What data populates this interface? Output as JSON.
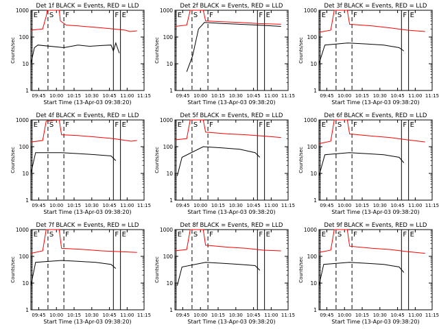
{
  "chart_data": [
    {
      "type": "line",
      "title": "Det 1f BLACK = Events, RED = LLD",
      "ylabel": "Counts/sec",
      "xlabel": "Start Time (13-Apr-03 09:38:20)",
      "x_ticks": [
        "09:45",
        "10:00",
        "10:15",
        "10:30",
        "10:45",
        "11:00",
        "11:15"
      ],
      "y_ticks": [
        "1",
        "10",
        "100",
        "1000"
      ],
      "y_scale": "log",
      "ylim": [
        1,
        1000
      ],
      "markers": [
        "E",
        "S",
        "F",
        "F",
        "E"
      ],
      "series": [
        {
          "color": "#ff0000",
          "values": [
            [
              0,
              180
            ],
            [
              5,
              190
            ],
            [
              10,
              200
            ],
            [
              13,
              600
            ],
            [
              14,
              1000
            ],
            [
              24,
              1000
            ],
            [
              25,
              400
            ],
            [
              30,
              280
            ],
            [
              40,
              260
            ],
            [
              50,
              240
            ],
            [
              60,
              220
            ],
            [
              70,
              200
            ],
            [
              80,
              180
            ],
            [
              84,
              160
            ],
            [
              90,
              170
            ]
          ]
        },
        {
          "color": "#000000",
          "values": [
            [
              0,
              10
            ],
            [
              3,
              40
            ],
            [
              6,
              50
            ],
            [
              28,
              40
            ],
            [
              40,
              50
            ],
            [
              50,
              45
            ],
            [
              60,
              48
            ],
            [
              68,
              50
            ],
            [
              70,
              30
            ],
            [
              72,
              60
            ],
            [
              75,
              25
            ]
          ]
        }
      ]
    },
    {
      "type": "line",
      "title": "Det 2f BLACK = Events, RED = LLD",
      "ylabel": "Counts/sec",
      "xlabel": "Start Time (13-Apr-03 09:38:20)",
      "x_ticks": [
        "09:45",
        "10:00",
        "10:15",
        "10:30",
        "10:45",
        "11:00",
        "11:15"
      ],
      "y_ticks": [
        "1",
        "10",
        "100",
        "1000"
      ],
      "y_scale": "log",
      "ylim": [
        1,
        1000
      ],
      "markers": [
        "E",
        "S",
        "F",
        "F",
        "E"
      ],
      "series": [
        {
          "color": "#ff0000",
          "values": [
            [
              0,
              250
            ],
            [
              10,
              280
            ],
            [
              13,
              1000
            ],
            [
              24,
              1000
            ],
            [
              26,
              400
            ],
            [
              35,
              380
            ],
            [
              55,
              350
            ],
            [
              70,
              320
            ],
            [
              90,
              300
            ]
          ]
        },
        {
          "color": "#000000",
          "values": [
            [
              10,
              5
            ],
            [
              15,
              20
            ],
            [
              20,
              200
            ],
            [
              25,
              350
            ],
            [
              40,
              320
            ],
            [
              55,
              300
            ],
            [
              70,
              280
            ],
            [
              90,
              250
            ]
          ]
        }
      ]
    },
    {
      "type": "line",
      "title": "Det 3f BLACK = Events, RED = LLD",
      "ylabel": "Counts/sec",
      "xlabel": "Start Time (13-Apr-03 09:38:20)",
      "x_ticks": [
        "09:45",
        "10:00",
        "10:15",
        "10:30",
        "10:45",
        "11:00",
        "11:15"
      ],
      "y_ticks": [
        "1",
        "10",
        "100",
        "1000"
      ],
      "y_scale": "log",
      "ylim": [
        1,
        1000
      ],
      "markers": [
        "E",
        "S",
        "F",
        "F",
        "E"
      ],
      "series": [
        {
          "color": "#ff0000",
          "values": [
            [
              0,
              150
            ],
            [
              10,
              180
            ],
            [
              13,
              1000
            ],
            [
              24,
              1000
            ],
            [
              26,
              300
            ],
            [
              45,
              260
            ],
            [
              60,
              220
            ],
            [
              75,
              180
            ],
            [
              90,
              160
            ]
          ]
        },
        {
          "color": "#000000",
          "values": [
            [
              0,
              10
            ],
            [
              5,
              50
            ],
            [
              24,
              60
            ],
            [
              40,
              55
            ],
            [
              55,
              50
            ],
            [
              68,
              40
            ],
            [
              72,
              30
            ]
          ]
        }
      ]
    },
    {
      "type": "line",
      "title": "Det 4f BLACK = Events, RED = LLD",
      "ylabel": "Counts/sec",
      "xlabel": "Start Time (13-Apr-03 09:38:20)",
      "x_ticks": [
        "09:45",
        "10:00",
        "10:15",
        "10:30",
        "10:45",
        "11:00",
        "11:15"
      ],
      "y_ticks": [
        "1",
        "10",
        "100",
        "1000"
      ],
      "y_scale": "log",
      "ylim": [
        1,
        1000
      ],
      "markers": [
        "E",
        "S",
        "F",
        "F",
        "E"
      ],
      "series": [
        {
          "color": "#ff0000",
          "values": [
            [
              0,
              150
            ],
            [
              10,
              170
            ],
            [
              13,
              900
            ],
            [
              24,
              1000
            ],
            [
              26,
              280
            ],
            [
              40,
              260
            ],
            [
              60,
              220
            ],
            [
              70,
              200
            ],
            [
              85,
              160
            ],
            [
              90,
              170
            ]
          ]
        },
        {
          "color": "#000000",
          "values": [
            [
              0,
              10
            ],
            [
              4,
              60
            ],
            [
              26,
              60
            ],
            [
              40,
              55
            ],
            [
              55,
              50
            ],
            [
              68,
              45
            ],
            [
              72,
              30
            ]
          ]
        }
      ]
    },
    {
      "type": "line",
      "title": "Det 5f BLACK = Events, RED = LLD",
      "ylabel": "Counts/sec",
      "xlabel": "Start Time (13-Apr-03 09:38:20)",
      "x_ticks": [
        "09:45",
        "10:00",
        "10:15",
        "10:30",
        "10:45",
        "11:00",
        "11:15"
      ],
      "y_ticks": [
        "1",
        "10",
        "100",
        "1000"
      ],
      "y_scale": "log",
      "ylim": [
        1,
        1000
      ],
      "markers": [
        "E",
        "S",
        "F",
        "F",
        "E"
      ],
      "series": [
        {
          "color": "#ff0000",
          "values": [
            [
              0,
              180
            ],
            [
              10,
              200
            ],
            [
              13,
              1000
            ],
            [
              24,
              1000
            ],
            [
              26,
              350
            ],
            [
              45,
              300
            ],
            [
              60,
              280
            ],
            [
              75,
              250
            ],
            [
              90,
              220
            ]
          ]
        },
        {
          "color": "#000000",
          "values": [
            [
              2,
              8
            ],
            [
              6,
              40
            ],
            [
              24,
              100
            ],
            [
              40,
              90
            ],
            [
              55,
              80
            ],
            [
              68,
              60
            ],
            [
              72,
              40
            ]
          ]
        }
      ]
    },
    {
      "type": "line",
      "title": "Det 6f BLACK = Events, RED = LLD",
      "ylabel": "Counts/sec",
      "xlabel": "Start Time (13-Apr-03 09:38:20)",
      "x_ticks": [
        "09:45",
        "10:00",
        "10:15",
        "10:30",
        "10:45",
        "11:00",
        "11:15"
      ],
      "y_ticks": [
        "1",
        "10",
        "100",
        "1000"
      ],
      "y_scale": "log",
      "ylim": [
        1,
        1000
      ],
      "markers": [
        "E",
        "S",
        "F",
        "F",
        "E"
      ],
      "series": [
        {
          "color": "#ff0000",
          "values": [
            [
              0,
              130
            ],
            [
              10,
              160
            ],
            [
              13,
              1000
            ],
            [
              24,
              1000
            ],
            [
              26,
              300
            ],
            [
              45,
              250
            ],
            [
              60,
              220
            ],
            [
              75,
              180
            ],
            [
              90,
              150
            ]
          ]
        },
        {
          "color": "#000000",
          "values": [
            [
              0,
              8
            ],
            [
              5,
              50
            ],
            [
              26,
              60
            ],
            [
              40,
              55
            ],
            [
              55,
              50
            ],
            [
              68,
              40
            ],
            [
              72,
              25
            ]
          ]
        }
      ]
    },
    {
      "type": "line",
      "title": "Det 7f BLACK = Events, RED = LLD",
      "ylabel": "Counts/sec",
      "xlabel": "Start Time (13-Apr-03 09:38:20)",
      "x_ticks": [
        "09:45",
        "10:00",
        "10:15",
        "10:30",
        "10:45",
        "11:00",
        "11:15"
      ],
      "y_ticks": [
        "1",
        "10",
        "100",
        "1000"
      ],
      "y_scale": "log",
      "ylim": [
        1,
        1000
      ],
      "markers": [
        "E",
        "S",
        "F",
        "F",
        "E"
      ],
      "series": [
        {
          "color": "#ff0000",
          "values": [
            [
              0,
              130
            ],
            [
              10,
              160
            ],
            [
              13,
              1000
            ],
            [
              24,
              1000
            ],
            [
              26,
              200
            ],
            [
              45,
              180
            ],
            [
              60,
              160
            ],
            [
              75,
              150
            ],
            [
              90,
              140
            ]
          ]
        },
        {
          "color": "#000000",
          "values": [
            [
              0,
              8
            ],
            [
              4,
              60
            ],
            [
              26,
              70
            ],
            [
              40,
              65
            ],
            [
              55,
              60
            ],
            [
              68,
              50
            ],
            [
              72,
              35
            ]
          ]
        }
      ]
    },
    {
      "type": "line",
      "title": "Det 8f BLACK = Events, RED = LLD",
      "ylabel": "Counts/sec",
      "xlabel": "Start Time (13-Apr-03 09:38:20)",
      "x_ticks": [
        "09:45",
        "10:00",
        "10:15",
        "10:30",
        "10:45",
        "11:00",
        "11:15"
      ],
      "y_ticks": [
        "1",
        "10",
        "100",
        "1000"
      ],
      "y_scale": "log",
      "ylim": [
        1,
        1000
      ],
      "markers": [
        "E",
        "S",
        "F",
        "F",
        "E"
      ],
      "series": [
        {
          "color": "#ff0000",
          "values": [
            [
              0,
              160
            ],
            [
              10,
              180
            ],
            [
              13,
              1000
            ],
            [
              24,
              1000
            ],
            [
              26,
              260
            ],
            [
              45,
              220
            ],
            [
              60,
              200
            ],
            [
              75,
              170
            ],
            [
              90,
              160
            ]
          ]
        },
        {
          "color": "#000000",
          "values": [
            [
              2,
              8
            ],
            [
              6,
              40
            ],
            [
              26,
              60
            ],
            [
              40,
              55
            ],
            [
              55,
              50
            ],
            [
              68,
              45
            ],
            [
              72,
              30
            ]
          ]
        }
      ]
    },
    {
      "type": "line",
      "title": "Det 9f BLACK = Events, RED = LLD",
      "ylabel": "Counts/sec",
      "xlabel": "Start Time (13-Apr-03 09:38:20)",
      "x_ticks": [
        "09:45",
        "10:00",
        "10:15",
        "10:30",
        "10:45",
        "11:00",
        "11:15"
      ],
      "y_ticks": [
        "1",
        "10",
        "100",
        "1000"
      ],
      "y_scale": "log",
      "ylim": [
        1,
        1000
      ],
      "markers": [
        "E",
        "S",
        "F",
        "F",
        "E"
      ],
      "series": [
        {
          "color": "#ff0000",
          "values": [
            [
              0,
              140
            ],
            [
              10,
              170
            ],
            [
              13,
              1000
            ],
            [
              24,
              1000
            ],
            [
              26,
              240
            ],
            [
              45,
              200
            ],
            [
              60,
              180
            ],
            [
              75,
              150
            ],
            [
              90,
              130
            ]
          ]
        },
        {
          "color": "#000000",
          "values": [
            [
              0,
              8
            ],
            [
              4,
              50
            ],
            [
              26,
              60
            ],
            [
              40,
              55
            ],
            [
              55,
              50
            ],
            [
              68,
              40
            ],
            [
              72,
              25
            ]
          ]
        }
      ]
    }
  ]
}
